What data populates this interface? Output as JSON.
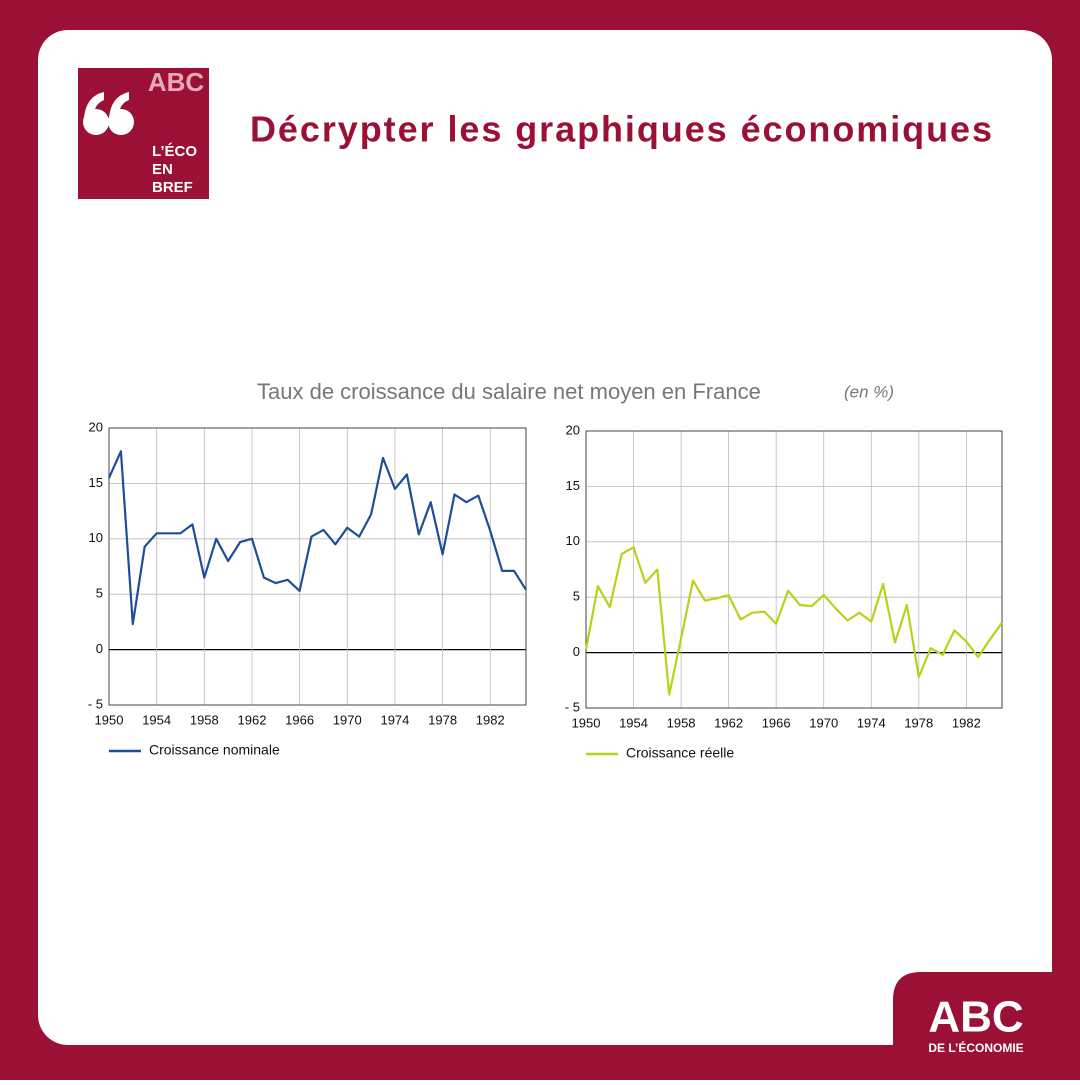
{
  "header": {
    "logo_mark": "ABC",
    "logo_lines": [
      "L’ÉCO",
      "EN",
      "BREF"
    ],
    "title": "Décrypter les graphiques économiques"
  },
  "figure": {
    "title": "Taux de croissance du salaire net moyen en France",
    "unit": "(en %)"
  },
  "chart_data": [
    {
      "type": "line",
      "x": [
        1950,
        1951,
        1952,
        1953,
        1954,
        1955,
        1956,
        1957,
        1958,
        1959,
        1960,
        1961,
        1962,
        1963,
        1964,
        1965,
        1966,
        1967,
        1968,
        1969,
        1970,
        1971,
        1972,
        1973,
        1974,
        1975,
        1976,
        1977,
        1978,
        1979,
        1980,
        1981,
        1982,
        1983,
        1984,
        1985
      ],
      "series": [
        {
          "name": "Croissance nominale",
          "color": "#1f4e99",
          "values": [
            15.5,
            17.9,
            2.3,
            9.3,
            10.5,
            10.5,
            10.5,
            11.3,
            6.5,
            10.0,
            8.0,
            9.7,
            10.0,
            6.5,
            6.0,
            6.3,
            5.3,
            10.2,
            10.8,
            9.5,
            11.0,
            10.2,
            12.2,
            17.3,
            14.5,
            15.8,
            10.4,
            13.3,
            8.6,
            14.0,
            13.3,
            13.9,
            10.7,
            7.1,
            7.1,
            5.4
          ]
        }
      ],
      "xlim": [
        1950,
        1985
      ],
      "xticks": [
        1950,
        1954,
        1958,
        1962,
        1966,
        1970,
        1974,
        1978,
        1982
      ],
      "ylim": [
        -5,
        20
      ],
      "yticks": [
        {
          "value": -5,
          "label": "- 5"
        },
        0,
        5,
        10,
        15,
        20
      ],
      "grid": true
    },
    {
      "type": "line",
      "x": [
        1950,
        1951,
        1952,
        1953,
        1954,
        1955,
        1956,
        1957,
        1958,
        1959,
        1960,
        1961,
        1962,
        1963,
        1964,
        1965,
        1966,
        1967,
        1968,
        1969,
        1970,
        1971,
        1972,
        1973,
        1974,
        1975,
        1976,
        1977,
        1978,
        1979,
        1980,
        1981,
        1982,
        1983,
        1984,
        1985
      ],
      "series": [
        {
          "name": "Croissance réelle",
          "color": "#b5d318",
          "values": [
            0.3,
            6.0,
            4.1,
            8.9,
            9.5,
            6.3,
            7.5,
            -3.8,
            1.3,
            6.5,
            4.7,
            4.9,
            5.2,
            3.0,
            3.6,
            3.7,
            2.6,
            5.6,
            4.3,
            4.2,
            5.2,
            4.0,
            2.9,
            3.6,
            2.8,
            6.2,
            0.9,
            4.3,
            -2.2,
            0.4,
            -0.2,
            2.0,
            1.0,
            -0.4,
            1.2,
            2.7
          ]
        }
      ],
      "xlim": [
        1950,
        1985
      ],
      "xticks": [
        1950,
        1954,
        1958,
        1962,
        1966,
        1970,
        1974,
        1978,
        1982
      ],
      "ylim": [
        -5,
        20
      ],
      "yticks": [
        {
          "value": -5,
          "label": "- 5"
        },
        0,
        5,
        10,
        15,
        20
      ],
      "grid": true
    }
  ],
  "footer": {
    "logo_mark": "ABC",
    "logo_text": "DE L’ÉCONOMIE"
  }
}
